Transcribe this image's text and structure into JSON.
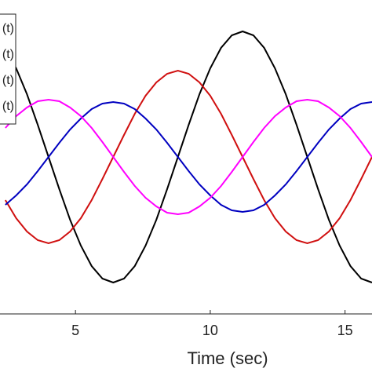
{
  "chart_data": {
    "type": "line",
    "xlabel": "Time (sec)",
    "xlim": [
      2.2,
      16
    ],
    "xticks": [
      5,
      10,
      15
    ],
    "ylim": [
      -2,
      2
    ],
    "legend": "upper-left",
    "x": [
      2.4,
      2.8,
      3.2,
      3.6,
      4,
      4.4,
      4.8,
      5.2,
      5.6,
      6,
      6.4,
      6.8,
      7.2,
      7.6,
      8,
      8.4,
      8.8,
      9.2,
      9.6,
      10,
      10.4,
      10.8,
      11.2,
      11.6,
      12,
      12.4,
      12.8,
      13.2,
      13.6,
      14,
      14.4,
      14.8,
      15.2,
      15.6,
      16
    ],
    "series": [
      {
        "name": "(t)",
        "color": "#000000",
        "values": [
          1.39,
          1.13,
          0.8,
          0.41,
          0,
          -0.41,
          -0.8,
          -1.13,
          -1.39,
          -1.55,
          -1.6,
          -1.55,
          -1.39,
          -1.13,
          -0.8,
          -0.41,
          0,
          0.41,
          0.8,
          1.13,
          1.39,
          1.55,
          1.6,
          1.55,
          1.39,
          1.13,
          0.8,
          0.41,
          0,
          -0.41,
          -0.8,
          -1.13,
          -1.39,
          -1.55,
          -1.6
        ]
      },
      {
        "name": "(t)",
        "color": "#d01010",
        "values": [
          -0.55,
          -0.78,
          -0.95,
          -1.06,
          -1.1,
          -1.06,
          -0.95,
          -0.78,
          -0.55,
          -0.28,
          0,
          0.28,
          0.55,
          0.78,
          0.95,
          1.06,
          1.1,
          1.06,
          0.95,
          0.78,
          0.55,
          0.28,
          0,
          -0.28,
          -0.55,
          -0.78,
          -0.95,
          -1.06,
          -1.1,
          -1.06,
          -0.95,
          -0.78,
          -0.55,
          -0.28,
          0
        ]
      },
      {
        "name": "(t)",
        "color": "#0000c0",
        "values": [
          -0.61,
          -0.49,
          -0.35,
          -0.18,
          0,
          0.18,
          0.35,
          0.49,
          0.61,
          0.68,
          0.7,
          0.68,
          0.61,
          0.49,
          0.35,
          0.18,
          0,
          -0.18,
          -0.35,
          -0.49,
          -0.61,
          -0.68,
          -0.7,
          -0.68,
          -0.61,
          -0.49,
          -0.35,
          -0.18,
          0,
          0.18,
          0.35,
          0.49,
          0.61,
          0.68,
          0.7
        ]
      },
      {
        "name": "(t)",
        "color": "#ff00ff",
        "values": [
          0.37,
          0.52,
          0.63,
          0.71,
          0.73,
          0.71,
          0.63,
          0.52,
          0.37,
          0.19,
          0,
          -0.19,
          -0.37,
          -0.52,
          -0.63,
          -0.71,
          -0.73,
          -0.71,
          -0.63,
          -0.52,
          -0.37,
          -0.19,
          0,
          0.19,
          0.37,
          0.52,
          0.63,
          0.71,
          0.73,
          0.71,
          0.63,
          0.52,
          0.37,
          0.19,
          0
        ]
      }
    ]
  }
}
